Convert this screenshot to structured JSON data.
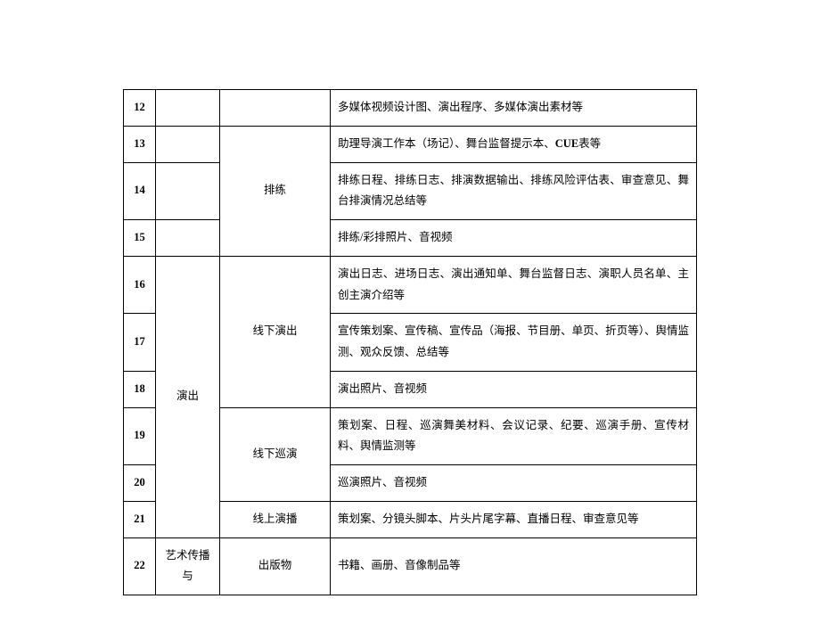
{
  "table": {
    "columns": {
      "num_width": 36,
      "cat1_width": 72,
      "cat2_width": 124
    },
    "styling": {
      "border_color": "#000000",
      "background_color": "#ffffff",
      "text_color": "#000000",
      "font_size": 12.5,
      "line_height": 1.9,
      "font_family": "SimSun"
    },
    "rows": [
      {
        "num": "12",
        "cat1": null,
        "cat2": null,
        "desc": "多媒体视频设计图、演出程序、多媒体演出素材等"
      },
      {
        "num": "13",
        "cat1": null,
        "cat2": "排练",
        "cat2_rowspan": 3,
        "desc_prefix": "助理导演工作本（场记）、舞台监督提示本、",
        "desc_bold": "CUE",
        "desc_suffix": "表等"
      },
      {
        "num": "14",
        "cat1": null,
        "desc": "排练日程、排练日志、排演数据输出、排练风险评估表、审查意见、舞台排演情况总结等"
      },
      {
        "num": "15",
        "cat1": null,
        "desc": "排练/彩排照片、音视频"
      },
      {
        "num": "16",
        "cat1": "演出",
        "cat1_rowspan": 6,
        "cat2": "线下演出",
        "cat2_rowspan": 3,
        "desc": "演出日志、进场日志、演出通知单、舞台监督日志、演职人员名单、主创主演介绍等"
      },
      {
        "num": "17",
        "desc": "宣传策划案、宣传稿、宣传品（海报、节目册、单页、折页等）、舆情监测、观众反馈、总结等"
      },
      {
        "num": "18",
        "desc": "演出照片、音视频"
      },
      {
        "num": "19",
        "cat2": "线下巡演",
        "cat2_rowspan": 2,
        "desc": "策划案、日程、巡演舞美材料、会议记录、纪要、巡演手册、宣传材料、舆情监测等"
      },
      {
        "num": "20",
        "desc": "巡演照片、音视频"
      },
      {
        "num": "21",
        "cat2": "线上演播",
        "cat2_rowspan": 1,
        "desc": "策划案、分镜头脚本、片头片尾字幕、直播日程、审查意见等"
      },
      {
        "num": "22",
        "cat1": "艺术传播与",
        "cat1_rowspan": 1,
        "cat2": "出版物",
        "cat2_rowspan": 1,
        "desc": "书籍、画册、音像制品等"
      }
    ]
  }
}
